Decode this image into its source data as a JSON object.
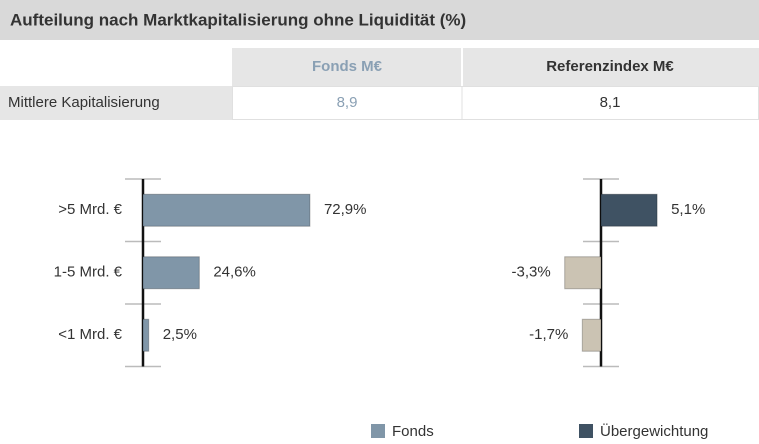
{
  "header": {
    "title": "Aufteilung nach Marktkapitalisierung ohne Liquidität (%)"
  },
  "table": {
    "columns": [
      "Fonds M€",
      "Referenzindex M€"
    ],
    "rows": [
      [
        "Mittlere Kapitalisierung",
        "8,9",
        "8,1"
      ]
    ]
  },
  "chart_data": [
    {
      "type": "bar",
      "orientation": "horizontal",
      "categories": [
        ">5 Mrd. €",
        "1-5 Mrd. €",
        "<1 Mrd. €"
      ],
      "series": [
        {
          "name": "Fonds",
          "color": "#8096a8",
          "values": [
            72.9,
            24.6,
            2.5
          ],
          "value_labels": [
            "72,9%",
            "24,6%",
            "2,5%"
          ]
        }
      ],
      "xlim": [
        0,
        100
      ]
    },
    {
      "type": "bar",
      "orientation": "horizontal",
      "categories": [
        null,
        null,
        null
      ],
      "series": [
        {
          "name": "Übergewichtung",
          "color": "#3f5263",
          "negative_color": "#cbc3b3",
          "values": [
            5.1,
            -3.3,
            -1.7
          ],
          "value_labels": [
            "5,1%",
            "-3,3%",
            "-1,7%"
          ]
        }
      ],
      "xlim": [
        -10,
        10
      ]
    }
  ]
}
